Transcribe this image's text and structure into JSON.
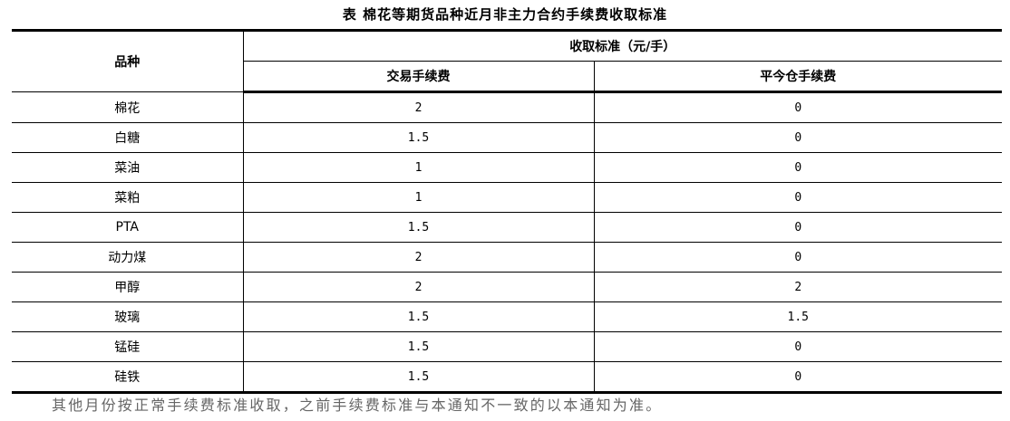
{
  "title": "表 棉花等期货品种近月非主力合约手续费收取标准",
  "header": {
    "variety": "品种",
    "standard": "收取标准（元/手）",
    "trade_fee": "交易手续费",
    "close_today_fee": "平今仓手续费"
  },
  "rows": [
    {
      "variety": "棉花",
      "trade_fee": "2",
      "close_today_fee": "0"
    },
    {
      "variety": "白糖",
      "trade_fee": "1.5",
      "close_today_fee": "0"
    },
    {
      "variety": "菜油",
      "trade_fee": "1",
      "close_today_fee": "0"
    },
    {
      "variety": "菜粕",
      "trade_fee": "1",
      "close_today_fee": "0"
    },
    {
      "variety": "PTA",
      "trade_fee": "1.5",
      "close_today_fee": "0"
    },
    {
      "variety": "动力煤",
      "trade_fee": "2",
      "close_today_fee": "0"
    },
    {
      "variety": "甲醇",
      "trade_fee": "2",
      "close_today_fee": "2"
    },
    {
      "variety": "玻璃",
      "trade_fee": "1.5",
      "close_today_fee": "1.5"
    },
    {
      "variety": "锰硅",
      "trade_fee": "1.5",
      "close_today_fee": "0"
    },
    {
      "variety": "硅铁",
      "trade_fee": "1.5",
      "close_today_fee": "0"
    }
  ],
  "note": "其他月份按正常手续费标准收取，之前手续费标准与本通知不一致的以本通知为准。"
}
